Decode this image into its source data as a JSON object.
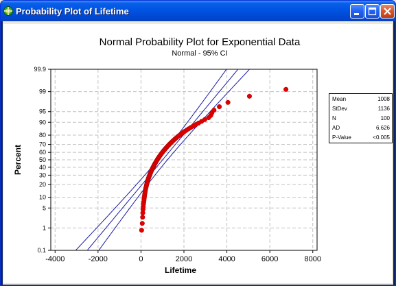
{
  "window": {
    "title": "Probability Plot of Lifetime",
    "buttons": {
      "minimize": "minimize",
      "maximize": "maximize",
      "close": "close"
    }
  },
  "colors": {
    "titlebar": "#0055e5",
    "points": "#e00000",
    "ci_lines": "#1a1aa6",
    "gridlines": "#c0c0c0",
    "client_bg": "#ece9d8"
  },
  "stats": [
    {
      "label": "Mean",
      "value": "1008"
    },
    {
      "label": "StDev",
      "value": "1136"
    },
    {
      "label": "N",
      "value": "100"
    },
    {
      "label": "AD",
      "value": "6.626"
    },
    {
      "label": "P-Value",
      "value": "<0.005"
    }
  ],
  "chart_data": {
    "type": "scatter",
    "title": "Normal Probability Plot for Exponential Data",
    "subtitle": "Normal - 95% CI",
    "xlabel": "Lifetime",
    "ylabel": "Percent",
    "y_scale": "normal probability",
    "xlim": [
      -4200,
      8200
    ],
    "ylim_percent": [
      0.1,
      99.9
    ],
    "xticks": [
      -4000,
      -2000,
      0,
      2000,
      4000,
      6000,
      8000
    ],
    "yticks": [
      0.1,
      1,
      5,
      10,
      20,
      30,
      40,
      50,
      60,
      70,
      80,
      90,
      95,
      99,
      99.9
    ],
    "grid": true,
    "fit": {
      "mean": 1008,
      "stdev": 1136
    },
    "ci_level": 0.95,
    "n": 100,
    "points": {
      "x": [
        30,
        60,
        75,
        85,
        95,
        105,
        115,
        130,
        140,
        150,
        160,
        170,
        180,
        190,
        200,
        210,
        222,
        235,
        248,
        260,
        272,
        285,
        298,
        310,
        322,
        335,
        350,
        365,
        380,
        395,
        410,
        425,
        440,
        455,
        470,
        487,
        503,
        520,
        537,
        555,
        572,
        590,
        608,
        627,
        646,
        665,
        685,
        705,
        725,
        746,
        767,
        789,
        811,
        834,
        857,
        881,
        906,
        931,
        957,
        984,
        1011,
        1039,
        1068,
        1098,
        1129,
        1161,
        1194,
        1228,
        1263,
        1300,
        1338,
        1378,
        1419,
        1462,
        1507,
        1554,
        1603,
        1655,
        1710,
        1768,
        1830,
        1896,
        1967,
        2044,
        2127,
        2219,
        2320,
        2430,
        2550,
        2680,
        2820,
        2970,
        3150,
        3250,
        3300,
        3400,
        3650,
        4050,
        5050,
        6750
      ],
      "y_percent": [
        0.81,
        1.5,
        2.5,
        3.5,
        4.5,
        5.5,
        6.5,
        7.5,
        8.5,
        9.5,
        10.5,
        11.5,
        12.5,
        13.5,
        14.5,
        15.5,
        16.5,
        17.5,
        18.5,
        19.5,
        20.5,
        21.5,
        22.5,
        23.5,
        24.5,
        25.5,
        26.5,
        27.5,
        28.5,
        29.5,
        30.5,
        31.5,
        32.5,
        33.5,
        34.5,
        35.5,
        36.5,
        37.5,
        38.5,
        39.5,
        40.5,
        41.5,
        42.5,
        43.5,
        44.5,
        45.5,
        46.5,
        47.5,
        48.5,
        49.5,
        50.5,
        51.5,
        52.5,
        53.5,
        54.5,
        55.5,
        56.5,
        57.5,
        58.5,
        59.5,
        60.5,
        61.5,
        62.5,
        63.5,
        64.5,
        65.5,
        66.5,
        67.5,
        68.5,
        69.5,
        70.5,
        71.5,
        72.5,
        73.5,
        74.5,
        75.5,
        76.5,
        77.5,
        78.5,
        79.5,
        80.5,
        81.5,
        82.5,
        83.5,
        84.5,
        85.5,
        86.5,
        87.5,
        88.5,
        89.5,
        90.5,
        91.5,
        92.5,
        93.5,
        94.5,
        95.5,
        96.5,
        97.5,
        98.5,
        99.19
      ]
    }
  }
}
